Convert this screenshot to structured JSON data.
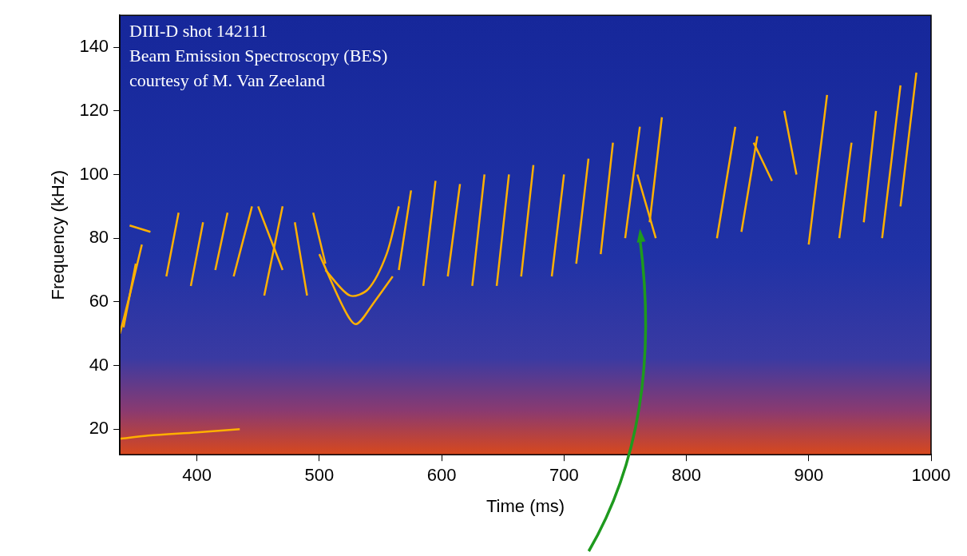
{
  "chart_data": {
    "type": "line",
    "annotations": [
      "DIII-D shot 142111",
      "Beam Emission Spectroscopy (BES)",
      "courtesy of M. Van Zeeland"
    ],
    "xlabel": "Time (ms)",
    "ylabel": "Frequency (kHz)",
    "xlim": [
      337,
      1000
    ],
    "ylim": [
      12,
      150
    ],
    "xticks": [
      400,
      500,
      600,
      700,
      800,
      900,
      1000
    ],
    "yticks": [
      20,
      40,
      60,
      80,
      100,
      120,
      140
    ],
    "grid": false,
    "color": "#ffb000",
    "marker": "none",
    "line_style": "solid",
    "pointer": {
      "x": 762,
      "y": 83
    },
    "series": [
      {
        "x": [
          337,
          360,
          400,
          435
        ],
        "values": [
          17,
          18,
          19,
          20
        ]
      },
      {
        "x": [
          337,
          345,
          355
        ],
        "values": [
          50,
          62,
          78
        ]
      },
      {
        "x": [
          340,
          350
        ],
        "values": [
          52,
          72
        ]
      },
      {
        "x": [
          345,
          362
        ],
        "values": [
          84,
          82
        ]
      },
      {
        "x": [
          375,
          385
        ],
        "values": [
          68,
          88
        ]
      },
      {
        "x": [
          395,
          405
        ],
        "values": [
          65,
          85
        ]
      },
      {
        "x": [
          415,
          425
        ],
        "values": [
          70,
          88
        ]
      },
      {
        "x": [
          430,
          445
        ],
        "values": [
          68,
          90
        ]
      },
      {
        "x": [
          455,
          470
        ],
        "values": [
          62,
          90
        ]
      },
      {
        "x": [
          450,
          470
        ],
        "values": [
          90,
          70
        ]
      },
      {
        "x": [
          480,
          490
        ],
        "values": [
          85,
          62
        ]
      },
      {
        "x": [
          495,
          505
        ],
        "values": [
          88,
          72
        ]
      },
      {
        "x": [
          500,
          520,
          530,
          545,
          560
        ],
        "values": [
          75,
          58,
          53,
          60,
          68
        ]
      },
      {
        "x": [
          505,
          525,
          540,
          555,
          565
        ],
        "values": [
          70,
          62,
          64,
          75,
          90
        ]
      },
      {
        "x": [
          565,
          575
        ],
        "values": [
          70,
          95
        ]
      },
      {
        "x": [
          585,
          595
        ],
        "values": [
          65,
          98
        ]
      },
      {
        "x": [
          605,
          615
        ],
        "values": [
          68,
          97
        ]
      },
      {
        "x": [
          625,
          635
        ],
        "values": [
          65,
          100
        ]
      },
      {
        "x": [
          645,
          655
        ],
        "values": [
          65,
          100
        ]
      },
      {
        "x": [
          665,
          675
        ],
        "values": [
          68,
          103
        ]
      },
      {
        "x": [
          690,
          700
        ],
        "values": [
          68,
          100
        ]
      },
      {
        "x": [
          710,
          720
        ],
        "values": [
          72,
          105
        ]
      },
      {
        "x": [
          730,
          740
        ],
        "values": [
          75,
          110
        ]
      },
      {
        "x": [
          750,
          762
        ],
        "values": [
          80,
          115
        ]
      },
      {
        "x": [
          770,
          780
        ],
        "values": [
          85,
          118
        ]
      },
      {
        "x": [
          760,
          775
        ],
        "values": [
          100,
          80
        ]
      },
      {
        "x": [
          825,
          840
        ],
        "values": [
          80,
          115
        ]
      },
      {
        "x": [
          845,
          858
        ],
        "values": [
          82,
          112
        ]
      },
      {
        "x": [
          855,
          870
        ],
        "values": [
          110,
          98
        ]
      },
      {
        "x": [
          880,
          890
        ],
        "values": [
          120,
          100
        ]
      },
      {
        "x": [
          900,
          915
        ],
        "values": [
          78,
          125
        ]
      },
      {
        "x": [
          925,
          935
        ],
        "values": [
          80,
          110
        ]
      },
      {
        "x": [
          945,
          955
        ],
        "values": [
          85,
          120
        ]
      },
      {
        "x": [
          960,
          975
        ],
        "values": [
          80,
          128
        ]
      },
      {
        "x": [
          975,
          988
        ],
        "values": [
          90,
          132
        ]
      }
    ]
  }
}
